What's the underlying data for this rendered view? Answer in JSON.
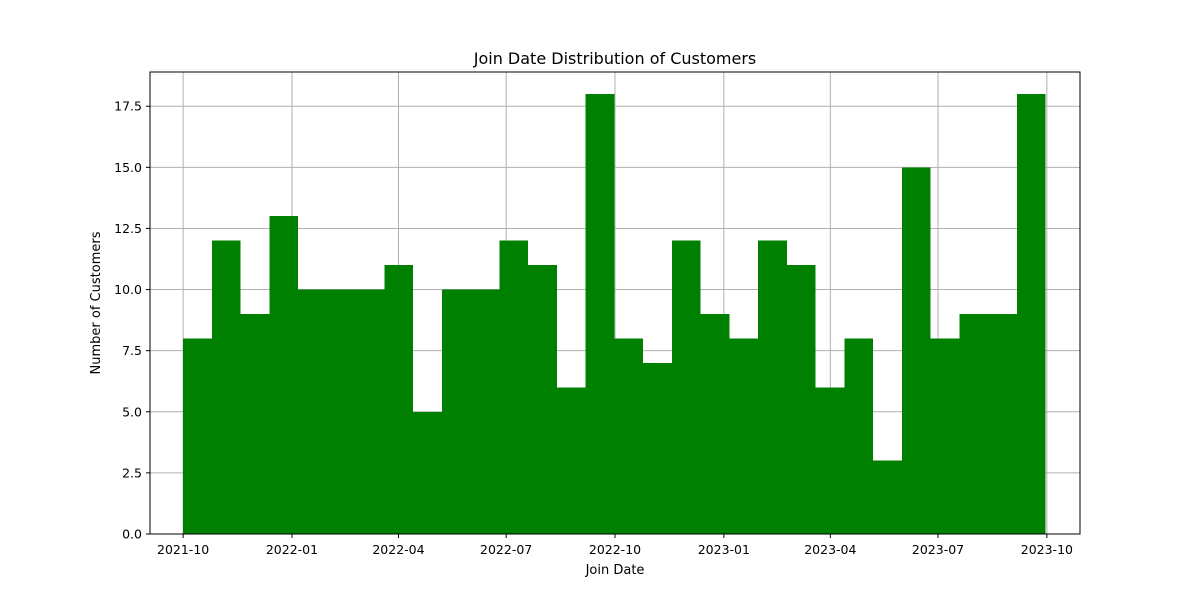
{
  "chart_data": {
    "type": "bar",
    "title": "Join Date Distribution of Customers",
    "xlabel": "Join Date",
    "ylabel": "Number of Customers",
    "x_range": [
      "2021-09-03",
      "2023-10-29"
    ],
    "ylim": [
      0,
      18.9
    ],
    "x_ticks": [
      "2021-10",
      "2022-01",
      "2022-04",
      "2022-07",
      "2022-10",
      "2023-01",
      "2023-04",
      "2023-07",
      "2023-10"
    ],
    "y_ticks": [
      "0.0",
      "2.5",
      "5.0",
      "7.5",
      "10.0",
      "12.5",
      "15.0",
      "17.5"
    ],
    "bin_range": [
      "2021-10-01",
      "2023-09-30"
    ],
    "values": [
      8,
      12,
      9,
      13,
      10,
      10,
      10,
      11,
      5,
      10,
      10,
      12,
      11,
      6,
      18,
      8,
      7,
      12,
      9,
      8,
      12,
      11,
      6,
      8,
      3,
      15,
      8,
      9,
      9,
      18
    ],
    "grid": true,
    "bar_color": "#008000",
    "grid_color": "#b0b0b0"
  }
}
